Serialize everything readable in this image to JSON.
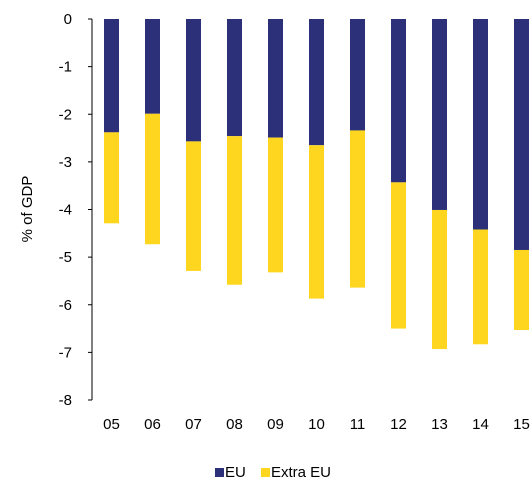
{
  "chart_data": {
    "type": "bar",
    "stacked": true,
    "categories": [
      "05",
      "06",
      "07",
      "08",
      "09",
      "10",
      "11",
      "12",
      "13",
      "14",
      "15"
    ],
    "series": [
      {
        "name": "EU",
        "values": [
          -2.38,
          -1.99,
          -2.57,
          -2.46,
          -2.49,
          -2.65,
          -2.34,
          -3.43,
          -4.01,
          -4.42,
          -4.85
        ],
        "color": "#2B3079"
      },
      {
        "name": "Extra EU",
        "values": [
          -1.91,
          -2.74,
          -2.72,
          -3.12,
          -2.83,
          -3.22,
          -3.3,
          -3.07,
          -2.92,
          -2.41,
          -1.68
        ],
        "color": "#FFD61F"
      }
    ],
    "xlabel": "",
    "ylabel": "% of GDP",
    "ylim": [
      -8,
      0
    ],
    "yticks": [
      "0",
      "-1",
      "-2",
      "-3",
      "-4",
      "-5",
      "-6",
      "-7",
      "-8"
    ],
    "grid": false,
    "legend": "bottom-center"
  }
}
